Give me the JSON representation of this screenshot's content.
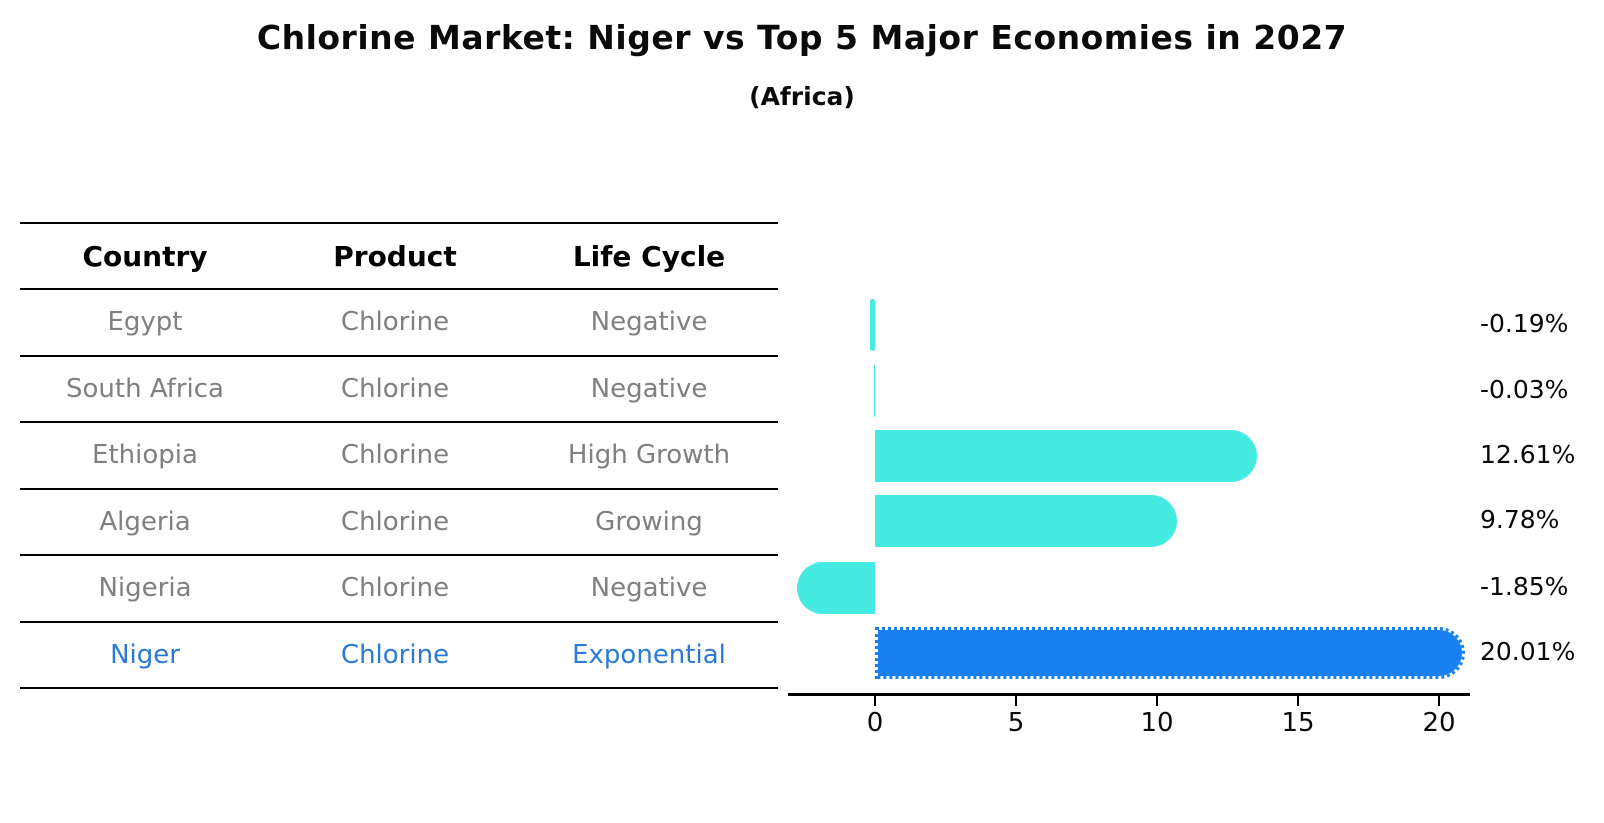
{
  "title": "Chlorine Market: Niger vs Top 5 Major Economies in 2027",
  "subtitle": "(Africa)",
  "colors": {
    "bar_default": "#45EAE1",
    "bar_highlight": "#1880F0",
    "highlight_text": "#2b7ad6",
    "table_text": "#808080",
    "header_text": "#000000",
    "axis_color": "#000000"
  },
  "table": {
    "columns": [
      "Country",
      "Product",
      "Life Cycle"
    ],
    "rows": [
      {
        "country": "Egypt",
        "product": "Chlorine",
        "life_cycle": "Negative",
        "highlight": false
      },
      {
        "country": "South Africa",
        "product": "Chlorine",
        "life_cycle": "Negative",
        "highlight": false
      },
      {
        "country": "Ethiopia",
        "product": "Chlorine",
        "life_cycle": "High Growth",
        "highlight": false
      },
      {
        "country": "Algeria",
        "product": "Chlorine",
        "life_cycle": "Growing",
        "highlight": false
      },
      {
        "country": "Nigeria",
        "product": "Chlorine",
        "life_cycle": "Negative",
        "highlight": false
      },
      {
        "country": "Niger",
        "product": "Chlorine",
        "life_cycle": "Exponential",
        "highlight": true
      }
    ]
  },
  "chart_data": {
    "type": "bar",
    "orientation": "horizontal",
    "title": "Chlorine Market: Niger vs Top 5 Major Economies in 2027",
    "subtitle": "(Africa)",
    "categories": [
      "Egypt",
      "South Africa",
      "Ethiopia",
      "Algeria",
      "Nigeria",
      "Niger"
    ],
    "values": [
      -0.19,
      -0.03,
      12.61,
      9.78,
      -1.85,
      20.01
    ],
    "value_labels": [
      "-0.19%",
      "-0.03%",
      "12.61%",
      "9.78%",
      "-1.85%",
      "20.01%"
    ],
    "highlight_category": "Niger",
    "xlabel": "",
    "ylabel": "",
    "xticks": [
      0,
      5,
      10,
      15,
      20
    ],
    "xlim": [
      -3.1,
      21.1
    ],
    "grid": false,
    "legend": false
  }
}
